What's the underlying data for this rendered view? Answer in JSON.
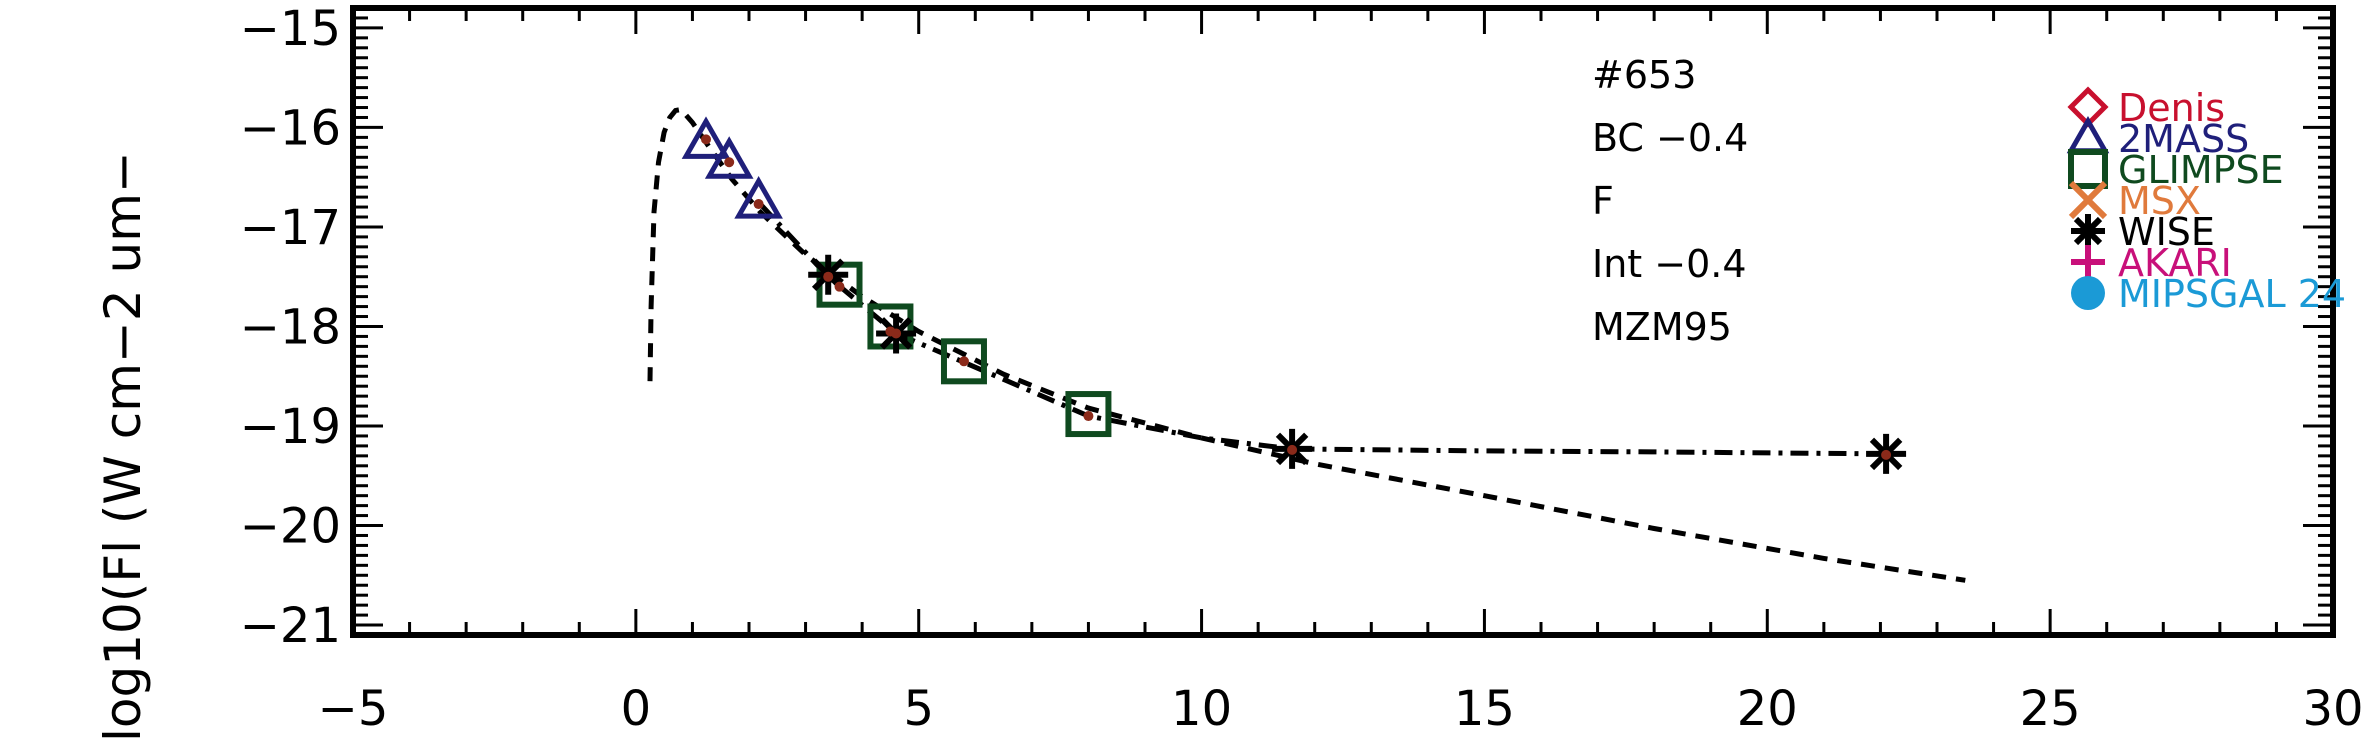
{
  "chart_data": {
    "type": "scatter",
    "title": "",
    "xlabel": "",
    "ylabel": "log10(Fl (W cm−2 um−",
    "xlim": [
      -5,
      30
    ],
    "ylim": [
      -21.1,
      -14.8
    ],
    "x_ticks": [
      -5,
      0,
      5,
      10,
      15,
      20,
      25,
      30
    ],
    "x_tick_labels": [
      "−5",
      "0",
      "5",
      "10",
      "15",
      "20",
      "25",
      "30"
    ],
    "y_ticks": [
      -21,
      -20,
      -19,
      -18,
      -17,
      -16,
      -15
    ],
    "y_tick_labels": [
      "−21",
      "−20",
      "−19",
      "−18",
      "−17",
      "−16",
      "−15"
    ],
    "annotations": [
      "#653",
      "BC −0.4",
      "F",
      "Int −0.4",
      "MZM95"
    ],
    "legend_position": "top-right",
    "legend": [
      {
        "label": "Denis",
        "marker": "diamond",
        "color": "#c8102e"
      },
      {
        "label": "2MASS",
        "marker": "triangle",
        "color": "#1f1f7a"
      },
      {
        "label": "GLIMPSE",
        "marker": "square",
        "color": "#0f4a1f"
      },
      {
        "label": "MSX",
        "marker": "x",
        "color": "#e07a3c"
      },
      {
        "label": "WISE",
        "marker": "asterisk",
        "color": "#000000"
      },
      {
        "label": "AKARI",
        "marker": "plus",
        "color": "#c8107a"
      },
      {
        "label": "MIPSGAL 24",
        "marker": "circle",
        "color": "#1b9ad6"
      }
    ],
    "series": [
      {
        "name": "2MASS",
        "marker": "triangle",
        "color": "#1f1f7a",
        "x": [
          1.24,
          1.65,
          2.17
        ],
        "y": [
          -16.14,
          -16.34,
          -16.74
        ]
      },
      {
        "name": "GLIMPSE",
        "marker": "square",
        "color": "#0f4a1f",
        "x": [
          3.6,
          4.5,
          5.8,
          8.0
        ],
        "y": [
          -17.58,
          -18.0,
          -18.35,
          -18.88
        ]
      },
      {
        "name": "WISE",
        "marker": "asterisk",
        "color": "#000000",
        "x": [
          3.4,
          4.6,
          11.6,
          22.1
        ],
        "y": [
          -17.48,
          -18.07,
          -19.23,
          -19.28
        ]
      },
      {
        "name": "model",
        "marker": "dot",
        "color": "#8b2a1a",
        "x": [
          1.24,
          1.65,
          2.17,
          3.4,
          3.6,
          4.5,
          4.6,
          5.8,
          8.0,
          11.6,
          22.1
        ],
        "y": [
          -16.12,
          -16.35,
          -16.77,
          -17.5,
          -17.6,
          -18.05,
          -18.07,
          -18.35,
          -18.9,
          -19.24,
          -19.29
        ]
      }
    ],
    "lines": [
      {
        "style": "dotted",
        "x": [
          0.25,
          0.27,
          0.32,
          0.4,
          0.5,
          0.6,
          0.7,
          0.8,
          1.0,
          1.3,
          1.7,
          2.2,
          3.0,
          4.0,
          5.0,
          6.5,
          8.0,
          10.0,
          12.0,
          15.0,
          18.0,
          21.0,
          23.5
        ],
        "y": [
          -18.55,
          -17.8,
          -16.85,
          -16.35,
          -16.05,
          -15.9,
          -15.83,
          -15.82,
          -15.95,
          -16.2,
          -16.52,
          -16.85,
          -17.28,
          -17.7,
          -18.05,
          -18.48,
          -18.82,
          -19.12,
          -19.38,
          -19.7,
          -20.03,
          -20.33,
          -20.55
        ]
      },
      {
        "style": "dash-dot",
        "x": [
          2.2,
          3.4,
          4.6,
          5.8,
          8.0,
          10.0,
          11.6,
          15.0,
          18.0,
          22.1
        ],
        "y": [
          -16.77,
          -17.5,
          -18.07,
          -18.36,
          -18.9,
          -19.12,
          -19.23,
          -19.25,
          -19.26,
          -19.28
        ]
      }
    ]
  }
}
